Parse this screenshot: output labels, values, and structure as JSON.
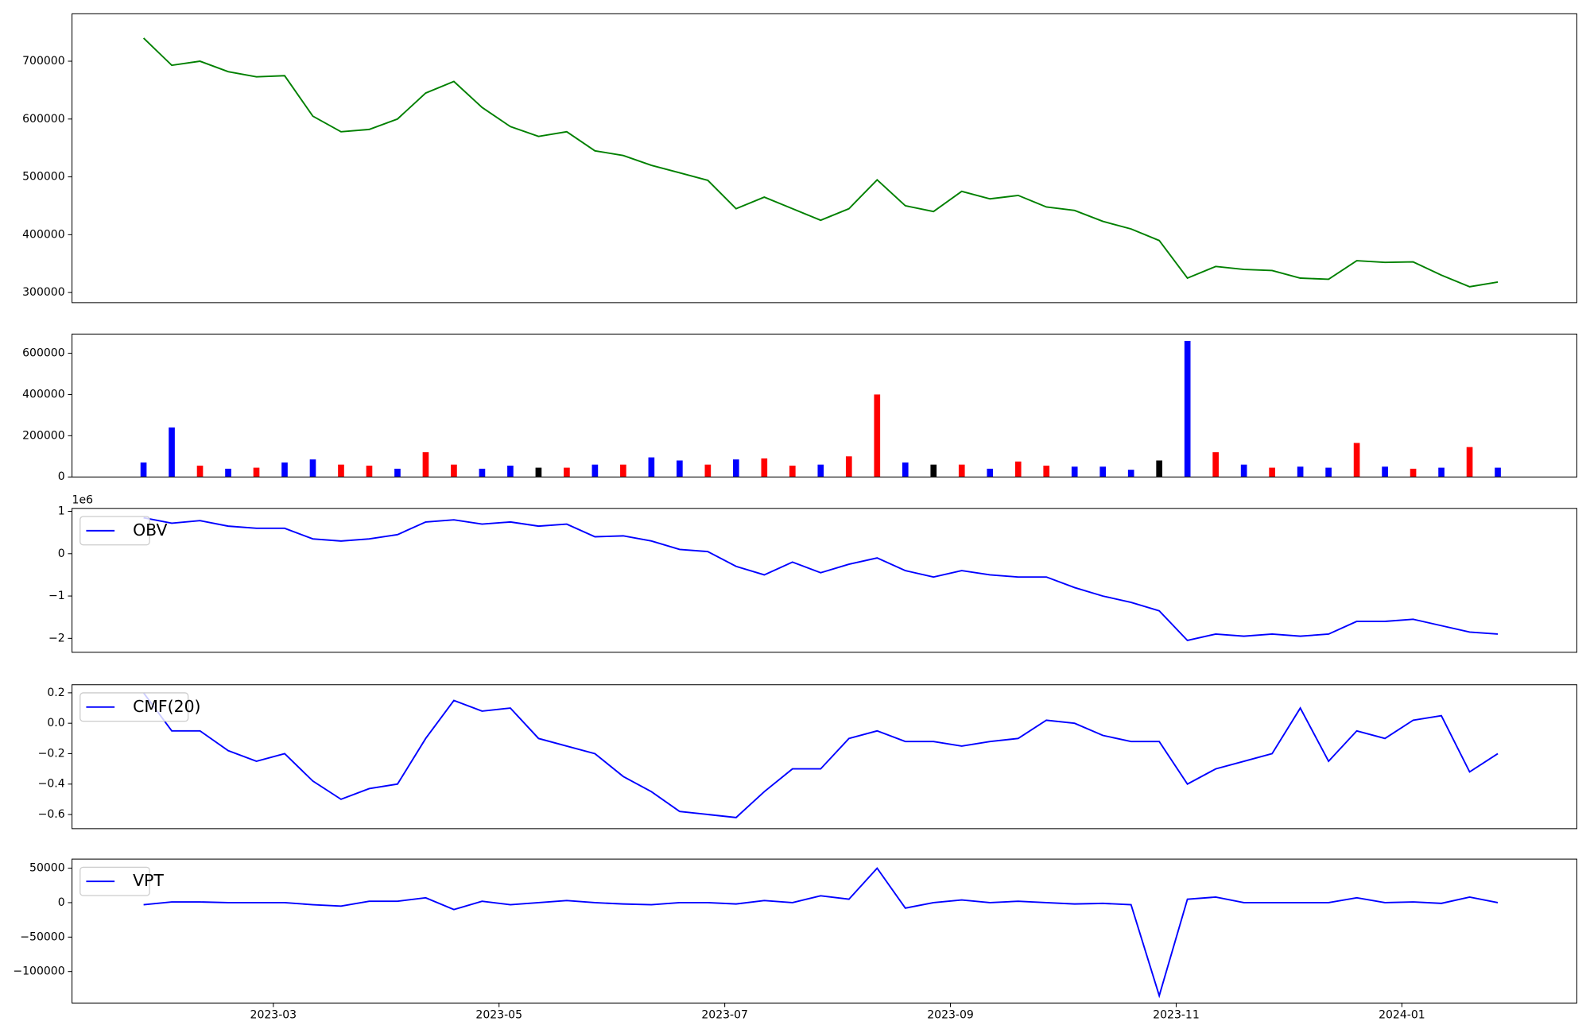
{
  "chart_data": [
    {
      "type": "line",
      "color": "#008000",
      "x": [
        1.85,
        2.1,
        2.35,
        2.6,
        2.85,
        3.1,
        3.35,
        3.6,
        3.85,
        4.1,
        4.35,
        4.6,
        4.85,
        5.1,
        5.35,
        5.6,
        5.85,
        6.1,
        6.35,
        6.6,
        6.85,
        7.1,
        7.35,
        7.6,
        7.85,
        8.1,
        8.35,
        8.6,
        8.85,
        9.1,
        9.35,
        9.6,
        9.85,
        10.1,
        10.35,
        10.6,
        10.85,
        11.1,
        11.35,
        11.6,
        11.85,
        12.1,
        12.35,
        12.6,
        12.85,
        13.1,
        13.35,
        13.6,
        13.85
      ],
      "values": [
        740000,
        693000,
        700000,
        682000,
        673000,
        675000,
        605000,
        578000,
        582000,
        600000,
        645000,
        665000,
        620000,
        587000,
        570000,
        578000,
        545000,
        537000,
        520000,
        507000,
        494000,
        445000,
        465000,
        445000,
        425000,
        445000,
        495000,
        450000,
        440000,
        475000,
        462000,
        468000,
        448000,
        442000,
        423000,
        410000,
        390000,
        325000,
        345000,
        340000,
        338000,
        325000,
        323000,
        355000,
        352000,
        353000,
        330000,
        310000,
        318000
      ],
      "xlim": [
        1.216,
        14.55
      ],
      "ylim": [
        282500,
        782000
      ],
      "yticks": [
        300000,
        400000,
        500000,
        600000,
        700000
      ]
    },
    {
      "type": "bar",
      "x": [
        1.85,
        2.1,
        2.35,
        2.6,
        2.85,
        3.1,
        3.35,
        3.6,
        3.85,
        4.1,
        4.35,
        4.6,
        4.85,
        5.1,
        5.35,
        5.6,
        5.85,
        6.1,
        6.35,
        6.6,
        6.85,
        7.1,
        7.35,
        7.6,
        7.85,
        8.1,
        8.35,
        8.6,
        8.85,
        9.1,
        9.35,
        9.6,
        9.85,
        10.1,
        10.35,
        10.6,
        10.85,
        11.1,
        11.35,
        11.6,
        11.85,
        12.1,
        12.35,
        12.6,
        12.85,
        13.1,
        13.35,
        13.6,
        13.85
      ],
      "values": [
        70000,
        240000,
        55000,
        40000,
        45000,
        70000,
        85000,
        60000,
        55000,
        40000,
        120000,
        60000,
        40000,
        55000,
        45000,
        45000,
        60000,
        60000,
        95000,
        80000,
        60000,
        85000,
        90000,
        55000,
        60000,
        100000,
        400000,
        70000,
        60000,
        60000,
        40000,
        75000,
        55000,
        50000,
        50000,
        35000,
        80000,
        660000,
        120000,
        60000,
        45000,
        50000,
        45000,
        165000,
        50000,
        40000,
        45000,
        145000,
        45000
      ],
      "colors": [
        "#0000ff",
        "#0000ff",
        "#ff0000",
        "#0000ff",
        "#ff0000",
        "#0000ff",
        "#0000ff",
        "#ff0000",
        "#ff0000",
        "#0000ff",
        "#ff0000",
        "#ff0000",
        "#0000ff",
        "#0000ff",
        "#000000",
        "#ff0000",
        "#0000ff",
        "#ff0000",
        "#0000ff",
        "#0000ff",
        "#ff0000",
        "#0000ff",
        "#ff0000",
        "#ff0000",
        "#0000ff",
        "#ff0000",
        "#ff0000",
        "#0000ff",
        "#000000",
        "#ff0000",
        "#0000ff",
        "#ff0000",
        "#ff0000",
        "#0000ff",
        "#0000ff",
        "#0000ff",
        "#000000",
        "#0000ff",
        "#ff0000",
        "#0000ff",
        "#ff0000",
        "#0000ff",
        "#0000ff",
        "#ff0000",
        "#0000ff",
        "#ff0000",
        "#0000ff",
        "#ff0000",
        "#0000ff"
      ],
      "xlim": [
        1.216,
        14.55
      ],
      "ylim": [
        0,
        693000
      ],
      "yticks": [
        0,
        200000,
        400000,
        600000
      ]
    },
    {
      "type": "line",
      "legend": "upper left",
      "y_offset_label": "1e6",
      "x": [
        1.85,
        2.1,
        2.35,
        2.6,
        2.85,
        3.1,
        3.35,
        3.6,
        3.85,
        4.1,
        4.35,
        4.6,
        4.85,
        5.1,
        5.35,
        5.6,
        5.85,
        6.1,
        6.35,
        6.6,
        6.85,
        7.1,
        7.35,
        7.6,
        7.85,
        8.1,
        8.35,
        8.6,
        8.85,
        9.1,
        9.35,
        9.6,
        9.85,
        10.1,
        10.35,
        10.6,
        10.85,
        11.1,
        11.35,
        11.6,
        11.85,
        12.1,
        12.35,
        12.6,
        12.85,
        13.1,
        13.35,
        13.6,
        13.85
      ],
      "series": [
        {
          "name": "OBV",
          "color": "#0000ff",
          "values": [
            0.85,
            0.72,
            0.78,
            0.65,
            0.6,
            0.6,
            0.35,
            0.3,
            0.35,
            0.45,
            0.75,
            0.8,
            0.7,
            0.75,
            0.65,
            0.7,
            0.4,
            0.42,
            0.3,
            0.1,
            0.05,
            -0.3,
            -0.5,
            -0.2,
            -0.45,
            -0.25,
            -0.1,
            -0.4,
            -0.55,
            -0.4,
            -0.5,
            -0.55,
            -0.55,
            -0.8,
            -1.0,
            -1.15,
            -1.35,
            -2.05,
            -1.9,
            -1.95,
            -1.9,
            -1.95,
            -1.9,
            -1.6,
            -1.6,
            -1.55,
            -1.7,
            -1.85,
            -1.9
          ]
        }
      ],
      "xlim": [
        1.216,
        14.55
      ],
      "ylim": [
        -2.33,
        1.07
      ],
      "yticks": [
        {
          "value": -2,
          "label": "−2"
        },
        {
          "value": -1,
          "label": "−1"
        },
        0,
        1
      ]
    },
    {
      "type": "line",
      "legend": "upper left",
      "x": [
        1.85,
        2.1,
        2.35,
        2.6,
        2.85,
        3.1,
        3.35,
        3.6,
        3.85,
        4.1,
        4.35,
        4.6,
        4.85,
        5.1,
        5.35,
        5.6,
        5.85,
        6.1,
        6.35,
        6.6,
        6.85,
        7.1,
        7.35,
        7.6,
        7.85,
        8.1,
        8.35,
        8.6,
        8.85,
        9.1,
        9.35,
        9.6,
        9.85,
        10.1,
        10.35,
        10.6,
        10.85,
        11.1,
        11.35,
        11.6,
        11.85,
        12.1,
        12.35,
        12.6,
        12.85,
        13.1,
        13.35,
        13.6,
        13.85
      ],
      "series": [
        {
          "name": "CMF(20)",
          "color": "#0000ff",
          "values": [
            0.2,
            -0.05,
            -0.05,
            -0.18,
            -0.25,
            -0.2,
            -0.38,
            -0.5,
            -0.43,
            -0.4,
            -0.1,
            0.15,
            0.08,
            0.1,
            -0.1,
            -0.15,
            -0.2,
            -0.35,
            -0.45,
            -0.58,
            -0.6,
            -0.62,
            -0.45,
            -0.3,
            -0.3,
            -0.1,
            -0.05,
            -0.12,
            -0.12,
            -0.15,
            -0.12,
            -0.1,
            0.02,
            0.0,
            -0.08,
            -0.12,
            -0.12,
            -0.4,
            -0.3,
            -0.25,
            -0.2,
            0.1,
            -0.25,
            -0.05,
            -0.1,
            0.02,
            0.05,
            -0.32,
            -0.2
          ]
        }
      ],
      "xlim": [
        1.216,
        14.55
      ],
      "ylim": [
        -0.693,
        0.253
      ],
      "yticks": [
        {
          "value": -0.6,
          "label": "−0.6"
        },
        {
          "value": -0.4,
          "label": "−0.4"
        },
        {
          "value": -0.2,
          "label": "−0.2"
        },
        {
          "value": 0,
          "label": "0.0"
        },
        0.2
      ]
    },
    {
      "type": "line",
      "legend": "upper left",
      "x": [
        1.85,
        2.1,
        2.35,
        2.6,
        2.85,
        3.1,
        3.35,
        3.6,
        3.85,
        4.1,
        4.35,
        4.6,
        4.85,
        5.1,
        5.35,
        5.6,
        5.85,
        6.1,
        6.35,
        6.6,
        6.85,
        7.1,
        7.35,
        7.6,
        7.85,
        8.1,
        8.35,
        8.6,
        8.85,
        9.1,
        9.35,
        9.6,
        9.85,
        10.1,
        10.35,
        10.6,
        10.85,
        11.1,
        11.35,
        11.6,
        11.85,
        12.1,
        12.35,
        12.6,
        12.85,
        13.1,
        13.35,
        13.6,
        13.85
      ],
      "series": [
        {
          "name": "VPT",
          "color": "#0000ff",
          "values": [
            -3000,
            1000,
            1000,
            0,
            0,
            0,
            -3000,
            -5000,
            2000,
            2000,
            7000,
            -10000,
            2000,
            -3000,
            0,
            3000,
            0,
            -2000,
            -3000,
            0,
            0,
            -2000,
            3000,
            0,
            10000,
            5000,
            50000,
            -8000,
            0,
            4000,
            0,
            2000,
            0,
            -2000,
            -1000,
            -3000,
            -135000,
            5000,
            8000,
            0,
            0,
            0,
            0,
            7000,
            0,
            1000,
            -1000,
            8000,
            0
          ]
        }
      ],
      "xlim": [
        1.216,
        14.55
      ],
      "ylim": [
        -145600,
        63200
      ],
      "yticks": [
        {
          "value": -100000,
          "label": "−100000"
        },
        {
          "value": -50000,
          "label": "−50000"
        },
        0,
        50000
      ],
      "xticks": [
        {
          "value": 3,
          "label": "2023-03"
        },
        {
          "value": 5,
          "label": "2023-05"
        },
        {
          "value": 7,
          "label": "2023-07"
        },
        {
          "value": 9,
          "label": "2023-09"
        },
        {
          "value": 11,
          "label": "2023-11"
        },
        {
          "value": 13,
          "label": "2024-01"
        }
      ]
    }
  ]
}
